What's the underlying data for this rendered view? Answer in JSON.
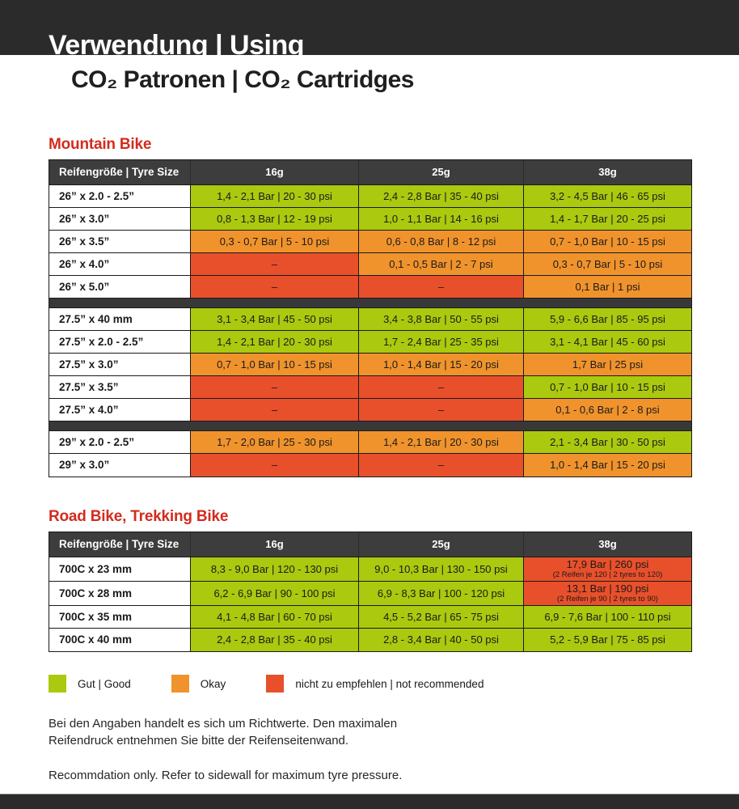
{
  "header": {
    "title": "Verwendung | Using",
    "subtitle": "CO₂ Patronen | CO₂ Cartridges"
  },
  "colors": {
    "good": "#abc90e",
    "okay": "#f0932c",
    "bad": "#e8502b",
    "header_bg": "#3d3d3d",
    "separator_bg": "#383838",
    "section_title": "#d32b1e",
    "band": "#2b2b2b"
  },
  "tables": [
    {
      "title": "Mountain Bike",
      "columns": [
        "Reifengröße | Tyre Size",
        "16g",
        "25g",
        "38g"
      ],
      "sections": [
        [
          {
            "label": "26” x 2.0 - 2.5”",
            "cells": [
              {
                "text": "1,4 - 2,1 Bar | 20 - 30 psi",
                "status": "good"
              },
              {
                "text": "2,4 - 2,8 Bar | 35 - 40 psi",
                "status": "good"
              },
              {
                "text": "3,2 - 4,5 Bar | 46 - 65 psi",
                "status": "good"
              }
            ]
          },
          {
            "label": "26” x 3.0”",
            "cells": [
              {
                "text": "0,8 - 1,3 Bar | 12 - 19 psi",
                "status": "good"
              },
              {
                "text": "1,0 - 1,1 Bar | 14 - 16 psi",
                "status": "good"
              },
              {
                "text": "1,4 - 1,7 Bar | 20 - 25 psi",
                "status": "good"
              }
            ]
          },
          {
            "label": "26” x 3.5”",
            "cells": [
              {
                "text": "0,3 - 0,7 Bar | 5 - 10 psi",
                "status": "okay"
              },
              {
                "text": "0,6 - 0,8 Bar | 8 - 12 psi",
                "status": "okay"
              },
              {
                "text": "0,7 - 1,0 Bar | 10 - 15 psi",
                "status": "okay"
              }
            ]
          },
          {
            "label": "26” x 4.0”",
            "cells": [
              {
                "text": "–",
                "status": "bad"
              },
              {
                "text": "0,1 - 0,5 Bar | 2 - 7 psi",
                "status": "okay"
              },
              {
                "text": "0,3 - 0,7 Bar | 5 - 10 psi",
                "status": "okay"
              }
            ]
          },
          {
            "label": "26” x 5.0”",
            "cells": [
              {
                "text": "–",
                "status": "bad"
              },
              {
                "text": "–",
                "status": "bad"
              },
              {
                "text": "0,1 Bar | 1 psi",
                "status": "okay"
              }
            ]
          }
        ],
        [
          {
            "label": "27.5” x 40 mm",
            "cells": [
              {
                "text": "3,1 - 3,4 Bar | 45 - 50 psi",
                "status": "good"
              },
              {
                "text": "3,4 - 3,8 Bar | 50 - 55 psi",
                "status": "good"
              },
              {
                "text": "5,9 - 6,6 Bar | 85 - 95 psi",
                "status": "good"
              }
            ]
          },
          {
            "label": "27.5” x 2.0 - 2.5”",
            "cells": [
              {
                "text": "1,4 - 2,1 Bar | 20 - 30 psi",
                "status": "good"
              },
              {
                "text": "1,7 - 2,4 Bar | 25 - 35 psi",
                "status": "good"
              },
              {
                "text": "3,1 - 4,1 Bar | 45 - 60 psi",
                "status": "good"
              }
            ]
          },
          {
            "label": "27.5” x 3.0”",
            "cells": [
              {
                "text": "0,7 - 1,0 Bar | 10 - 15 psi",
                "status": "okay"
              },
              {
                "text": "1,0 - 1,4 Bar | 15 - 20 psi",
                "status": "okay"
              },
              {
                "text": "1,7 Bar | 25 psi",
                "status": "okay"
              }
            ]
          },
          {
            "label": "27.5” x 3.5”",
            "cells": [
              {
                "text": "–",
                "status": "bad"
              },
              {
                "text": "–",
                "status": "bad"
              },
              {
                "text": "0,7 - 1,0 Bar | 10 - 15 psi",
                "status": "good"
              }
            ]
          },
          {
            "label": "27.5” x 4.0”",
            "cells": [
              {
                "text": "–",
                "status": "bad"
              },
              {
                "text": "–",
                "status": "bad"
              },
              {
                "text": "0,1 - 0,6 Bar | 2 - 8 psi",
                "status": "okay"
              }
            ]
          }
        ],
        [
          {
            "label": "29” x 2.0 - 2.5”",
            "cells": [
              {
                "text": "1,7 - 2,0 Bar | 25 - 30 psi",
                "status": "okay"
              },
              {
                "text": "1,4 - 2,1 Bar | 20 - 30 psi",
                "status": "okay"
              },
              {
                "text": "2,1 - 3,4 Bar | 30 - 50 psi",
                "status": "good"
              }
            ]
          },
          {
            "label": "29” x 3.0”",
            "cells": [
              {
                "text": "–",
                "status": "bad"
              },
              {
                "text": "–",
                "status": "bad"
              },
              {
                "text": "1,0 - 1,4 Bar | 15 - 20 psi",
                "status": "okay"
              }
            ]
          }
        ]
      ]
    },
    {
      "title": "Road Bike, Trekking Bike",
      "columns": [
        "Reifengröße | Tyre Size",
        "16g",
        "25g",
        "38g"
      ],
      "sections": [
        [
          {
            "label": "700C x 23 mm",
            "cells": [
              {
                "text": "8,3 - 9,0 Bar | 120 - 130 psi",
                "status": "good"
              },
              {
                "text": "9,0 - 10,3 Bar | 130 - 150 psi",
                "status": "good"
              },
              {
                "text": "17,9 Bar | 260 psi",
                "note": "(2 Reifen je 120 | 2 tyres to 120)",
                "status": "bad"
              }
            ]
          },
          {
            "label": "700C x 28 mm",
            "cells": [
              {
                "text": "6,2 - 6,9 Bar | 90 - 100 psi",
                "status": "good"
              },
              {
                "text": "6,9 - 8,3 Bar | 100 - 120 psi",
                "status": "good"
              },
              {
                "text": "13,1 Bar | 190 psi",
                "note": "(2 Reifen je 90 | 2 tyres to 90)",
                "status": "bad"
              }
            ]
          },
          {
            "label": "700C x 35 mm",
            "cells": [
              {
                "text": "4,1 - 4,8 Bar | 60 - 70 psi",
                "status": "good"
              },
              {
                "text": "4,5 - 5,2 Bar | 65 - 75 psi",
                "status": "good"
              },
              {
                "text": "6,9 - 7,6 Bar | 100 - 110 psi",
                "status": "good"
              }
            ]
          },
          {
            "label": "700C x 40 mm",
            "cells": [
              {
                "text": "2,4 - 2,8 Bar | 35 - 40 psi",
                "status": "good"
              },
              {
                "text": "2,8 - 3,4 Bar | 40 - 50 psi",
                "status": "good"
              },
              {
                "text": "5,2 - 5,9 Bar | 75 - 85 psi",
                "status": "good"
              }
            ]
          }
        ]
      ]
    }
  ],
  "legend": [
    {
      "status": "good",
      "label": "Gut | Good"
    },
    {
      "status": "okay",
      "label": "Okay"
    },
    {
      "status": "bad",
      "label": "nicht zu empfehlen | not recommended"
    }
  ],
  "footnotes": {
    "de": "Bei den Angaben handelt es sich um Richtwerte. Den maximalen\nReifendruck entnehmen Sie bitte der Reifenseitenwand.",
    "en": "Recommdation only. Refer to sidewall for maximum tyre pressure."
  }
}
